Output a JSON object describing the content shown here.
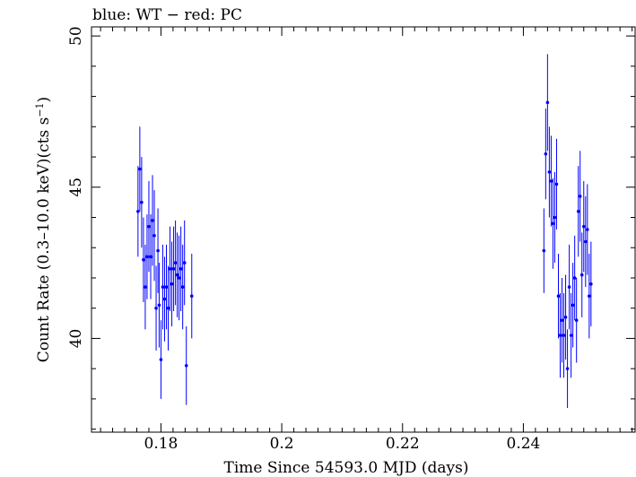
{
  "chart_data": {
    "type": "scatter",
    "title": "blue: WT − red: PC",
    "xlabel": "Time Since 54593.0 MJD (days)",
    "ylabel_main": "Count Rate (0.3–10.0 keV)(cts s",
    "ylabel_sup": "−1",
    "ylabel_tail": ")",
    "xlim": [
      0.1685,
      0.2585
    ],
    "ylim": [
      36.9,
      50.3
    ],
    "xticks": [
      0.18,
      0.2,
      0.22,
      0.24
    ],
    "xtick_labels": [
      "0.18",
      "0.2",
      "0.22",
      "0.24"
    ],
    "yticks": [
      40,
      45,
      50
    ],
    "ytick_labels": [
      "40",
      "45",
      "50"
    ],
    "series": [
      {
        "name": "WT",
        "color": "#0000ff",
        "points": [
          {
            "x": 0.1762,
            "y": 44.2,
            "err": 1.5
          },
          {
            "x": 0.1765,
            "y": 45.6,
            "err": 1.4
          },
          {
            "x": 0.1768,
            "y": 44.5,
            "err": 1.5
          },
          {
            "x": 0.1771,
            "y": 42.6,
            "err": 1.4
          },
          {
            "x": 0.1774,
            "y": 41.7,
            "err": 1.4
          },
          {
            "x": 0.1777,
            "y": 42.7,
            "err": 1.4
          },
          {
            "x": 0.178,
            "y": 43.7,
            "err": 1.5
          },
          {
            "x": 0.1783,
            "y": 42.7,
            "err": 1.4
          },
          {
            "x": 0.1786,
            "y": 43.9,
            "err": 1.5
          },
          {
            "x": 0.1789,
            "y": 43.4,
            "err": 1.5
          },
          {
            "x": 0.1792,
            "y": 41.0,
            "err": 1.4
          },
          {
            "x": 0.1795,
            "y": 42.9,
            "err": 1.4
          },
          {
            "x": 0.1797,
            "y": 41.1,
            "err": 1.4
          },
          {
            "x": 0.18,
            "y": 39.3,
            "err": 1.3
          },
          {
            "x": 0.1803,
            "y": 41.7,
            "err": 1.4
          },
          {
            "x": 0.1806,
            "y": 41.3,
            "err": 1.4
          },
          {
            "x": 0.1809,
            "y": 41.7,
            "err": 1.4
          },
          {
            "x": 0.1812,
            "y": 41.0,
            "err": 1.4
          },
          {
            "x": 0.1815,
            "y": 42.3,
            "err": 1.4
          },
          {
            "x": 0.1818,
            "y": 41.8,
            "err": 1.4
          },
          {
            "x": 0.1821,
            "y": 42.3,
            "err": 1.4
          },
          {
            "x": 0.1824,
            "y": 42.5,
            "err": 1.4
          },
          {
            "x": 0.1827,
            "y": 42.1,
            "err": 1.4
          },
          {
            "x": 0.183,
            "y": 42.0,
            "err": 1.4
          },
          {
            "x": 0.1833,
            "y": 42.3,
            "err": 1.4
          },
          {
            "x": 0.1836,
            "y": 41.7,
            "err": 1.4
          },
          {
            "x": 0.1839,
            "y": 42.5,
            "err": 1.4
          },
          {
            "x": 0.1842,
            "y": 39.1,
            "err": 1.3
          },
          {
            "x": 0.1851,
            "y": 41.4,
            "err": 1.4
          },
          {
            "x": 0.2434,
            "y": 42.9,
            "err": 1.4
          },
          {
            "x": 0.2437,
            "y": 46.1,
            "err": 1.5
          },
          {
            "x": 0.244,
            "y": 47.8,
            "err": 1.6
          },
          {
            "x": 0.2443,
            "y": 45.5,
            "err": 1.5
          },
          {
            "x": 0.2446,
            "y": 45.2,
            "err": 1.5
          },
          {
            "x": 0.2449,
            "y": 43.8,
            "err": 1.5
          },
          {
            "x": 0.2452,
            "y": 44.0,
            "err": 1.5
          },
          {
            "x": 0.2455,
            "y": 45.1,
            "err": 1.5
          },
          {
            "x": 0.2458,
            "y": 41.4,
            "err": 1.4
          },
          {
            "x": 0.2461,
            "y": 40.1,
            "err": 1.4
          },
          {
            "x": 0.2464,
            "y": 40.6,
            "err": 1.4
          },
          {
            "x": 0.2467,
            "y": 40.1,
            "err": 1.4
          },
          {
            "x": 0.247,
            "y": 40.7,
            "err": 1.4
          },
          {
            "x": 0.2473,
            "y": 39.0,
            "err": 1.3
          },
          {
            "x": 0.2476,
            "y": 41.7,
            "err": 1.4
          },
          {
            "x": 0.2479,
            "y": 40.1,
            "err": 1.4
          },
          {
            "x": 0.2482,
            "y": 41.1,
            "err": 1.4
          },
          {
            "x": 0.2485,
            "y": 42.0,
            "err": 1.4
          },
          {
            "x": 0.2488,
            "y": 40.6,
            "err": 1.4
          },
          {
            "x": 0.2491,
            "y": 44.2,
            "err": 1.5
          },
          {
            "x": 0.2494,
            "y": 44.7,
            "err": 1.5
          },
          {
            "x": 0.2497,
            "y": 42.1,
            "err": 1.4
          },
          {
            "x": 0.25,
            "y": 43.7,
            "err": 1.5
          },
          {
            "x": 0.2503,
            "y": 43.2,
            "err": 1.5
          },
          {
            "x": 0.2506,
            "y": 43.6,
            "err": 1.5
          },
          {
            "x": 0.2509,
            "y": 41.4,
            "err": 1.4
          },
          {
            "x": 0.2512,
            "y": 41.8,
            "err": 1.4
          }
        ]
      }
    ]
  }
}
